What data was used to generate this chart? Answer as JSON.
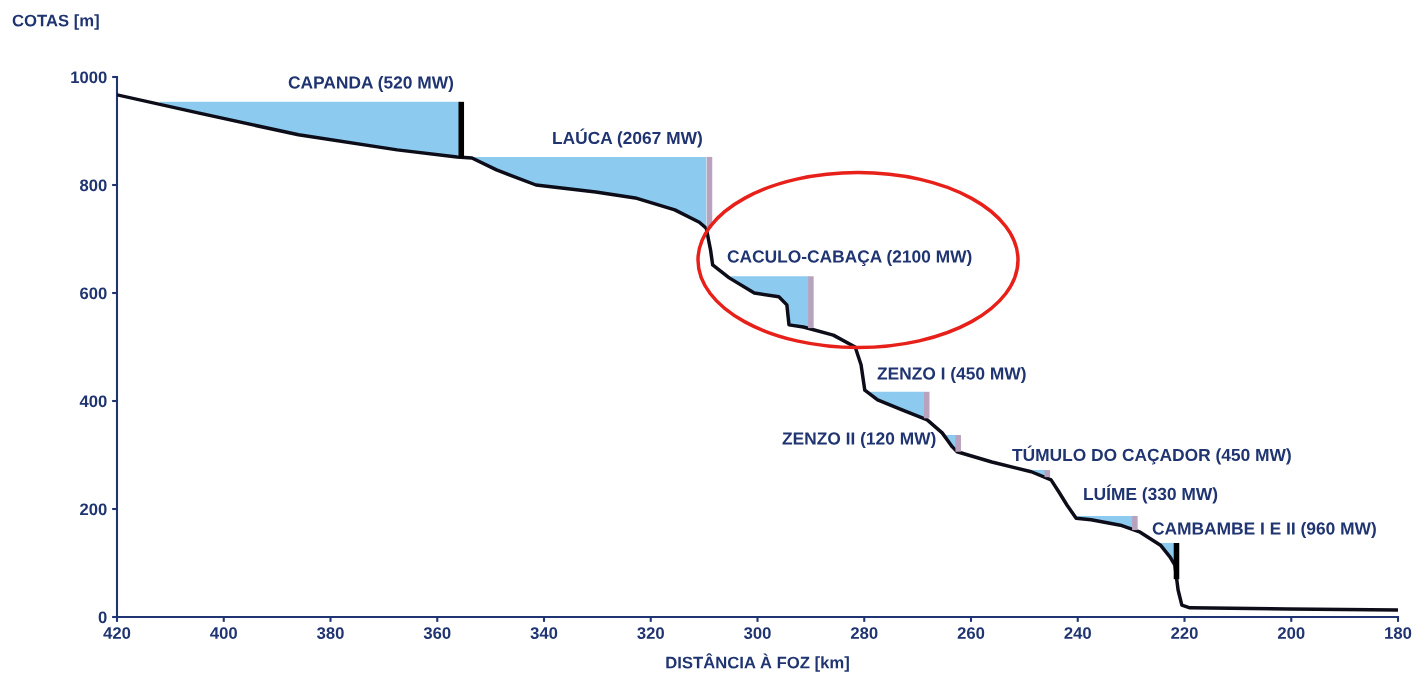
{
  "chart_data": {
    "type": "line",
    "xlabel": "DISTÂNCIA À FOZ [km]",
    "ylabel": "COTAS [m]",
    "xlim": [
      420,
      180
    ],
    "xticks": [
      420,
      400,
      380,
      360,
      340,
      320,
      300,
      280,
      260,
      240,
      220,
      200,
      180
    ],
    "ylim": [
      0,
      1000
    ],
    "yticks": [
      0,
      200,
      400,
      600,
      800,
      1000
    ],
    "grid": false,
    "legend": false,
    "marker": "none",
    "line_style": "solid",
    "series": [
      {
        "type": "area",
        "color": "#8ccbef",
        "x": [
          412,
          404.6,
          386,
          367.5,
          356.3,
          355.5
        ],
        "values": [
          954,
          954,
          954,
          954,
          954,
          954
        ]
      },
      {
        "type": "area",
        "color": "#8ccbef",
        "x": [
          353.5,
          348.9,
          341.5,
          330.3,
          322.9,
          315.5,
          310.9,
          309.6
        ],
        "values": [
          852,
          852,
          852,
          852,
          852,
          852,
          852,
          852
        ]
      },
      {
        "type": "area",
        "color": "#8ccbef",
        "x": [
          305.3,
          300.6,
          296,
          294.5,
          294.1,
          291.4,
          290.4
        ],
        "values": [
          631,
          631,
          631,
          631,
          631,
          631,
          631
        ]
      },
      {
        "type": "area",
        "color": "#8ccbef",
        "x": [
          279.9,
          277.5,
          272.8,
          268.7
        ],
        "values": [
          417,
          417,
          417,
          417
        ]
      },
      {
        "type": "area",
        "color": "#8ccbef",
        "x": [
          265.4,
          263.5,
          262.6
        ],
        "values": [
          337,
          337,
          337
        ]
      },
      {
        "type": "area",
        "color": "#8ccbef",
        "x": [
          250,
          248.7,
          245.9
        ],
        "values": [
          272,
          272,
          272
        ]
      },
      {
        "type": "area",
        "color": "#8ccbef",
        "x": [
          240.8,
          240.3,
          237.5,
          232,
          229.6
        ],
        "values": [
          187,
          187,
          187,
          187,
          187
        ]
      },
      {
        "type": "area",
        "color": "#8ccbef",
        "x": [
          225.5,
          224.5,
          222.7,
          221.8
        ],
        "values": [
          137,
          137,
          137,
          137
        ]
      },
      {
        "color": "#0d0d1a",
        "x": [
          420,
          404.6,
          386,
          367.5,
          356.3,
          353.5,
          348.9,
          341.5,
          330.3,
          322.9,
          315.5,
          310.9,
          309.6,
          308.8,
          308.4,
          305.3,
          300.6,
          296,
          294.5,
          294.1,
          291.4,
          285.8,
          281.7,
          280.6,
          279.9,
          277.5,
          272.8,
          268.2,
          265.4,
          263.5,
          262.6,
          256.1,
          248.7,
          245,
          243.5,
          242,
          240.3,
          237.5,
          232,
          228.3,
          224.5,
          222.7,
          221.8,
          221.2,
          220.5,
          219,
          200.5,
          180
        ],
        "values": [
          967,
          933,
          893,
          865,
          852,
          850,
          828,
          800,
          787,
          776,
          754,
          731,
          720,
          680,
          652,
          628,
          600,
          593,
          578,
          541,
          537,
          522,
          500,
          467,
          420,
          402,
          383,
          365,
          341,
          315,
          306,
          287,
          269,
          254,
          231,
          207,
          183,
          180,
          170,
          157,
          133,
          111,
          96,
          50,
          22,
          17,
          15,
          13
        ]
      },
      {
        "type": "line",
        "color": "#000000",
        "x": [
          355.5,
          355.5
        ],
        "values": [
          954,
          850
        ]
      },
      {
        "type": "line",
        "color": "#b8a2bd",
        "x": [
          309,
          309
        ],
        "values": [
          852,
          720
        ]
      },
      {
        "type": "line",
        "color": "#b8a2bd",
        "x": [
          290,
          290
        ],
        "values": [
          631,
          535
        ]
      },
      {
        "type": "line",
        "color": "#b8a2bd",
        "x": [
          268.3,
          268.3
        ],
        "values": [
          417,
          368
        ]
      },
      {
        "type": "line",
        "color": "#b8a2bd",
        "x": [
          262.4,
          262.4
        ],
        "values": [
          337,
          306
        ]
      },
      {
        "type": "line",
        "color": "#b8a2bd",
        "x": [
          245.7,
          245.7
        ],
        "values": [
          272,
          259
        ]
      },
      {
        "type": "line",
        "color": "#b8a2bd",
        "x": [
          229.3,
          229.3
        ],
        "values": [
          187,
          161
        ]
      },
      {
        "type": "line",
        "color": "#000000",
        "x": [
          221.5,
          221.5
        ],
        "values": [
          137,
          70
        ]
      }
    ],
    "annotations": [
      "CAPANDA (520 MW)",
      "LAÚCA (2067 MW)",
      "CACULO-CABAÇA (2100 MW)",
      "ZENZO I (450 MW)",
      "ZENZO II (120 MW)",
      "TÚMULO DO CAÇADOR (450 MW)",
      "LUÍME (330 MW)",
      "CAMBAMBE I E II (960 MW)"
    ]
  }
}
